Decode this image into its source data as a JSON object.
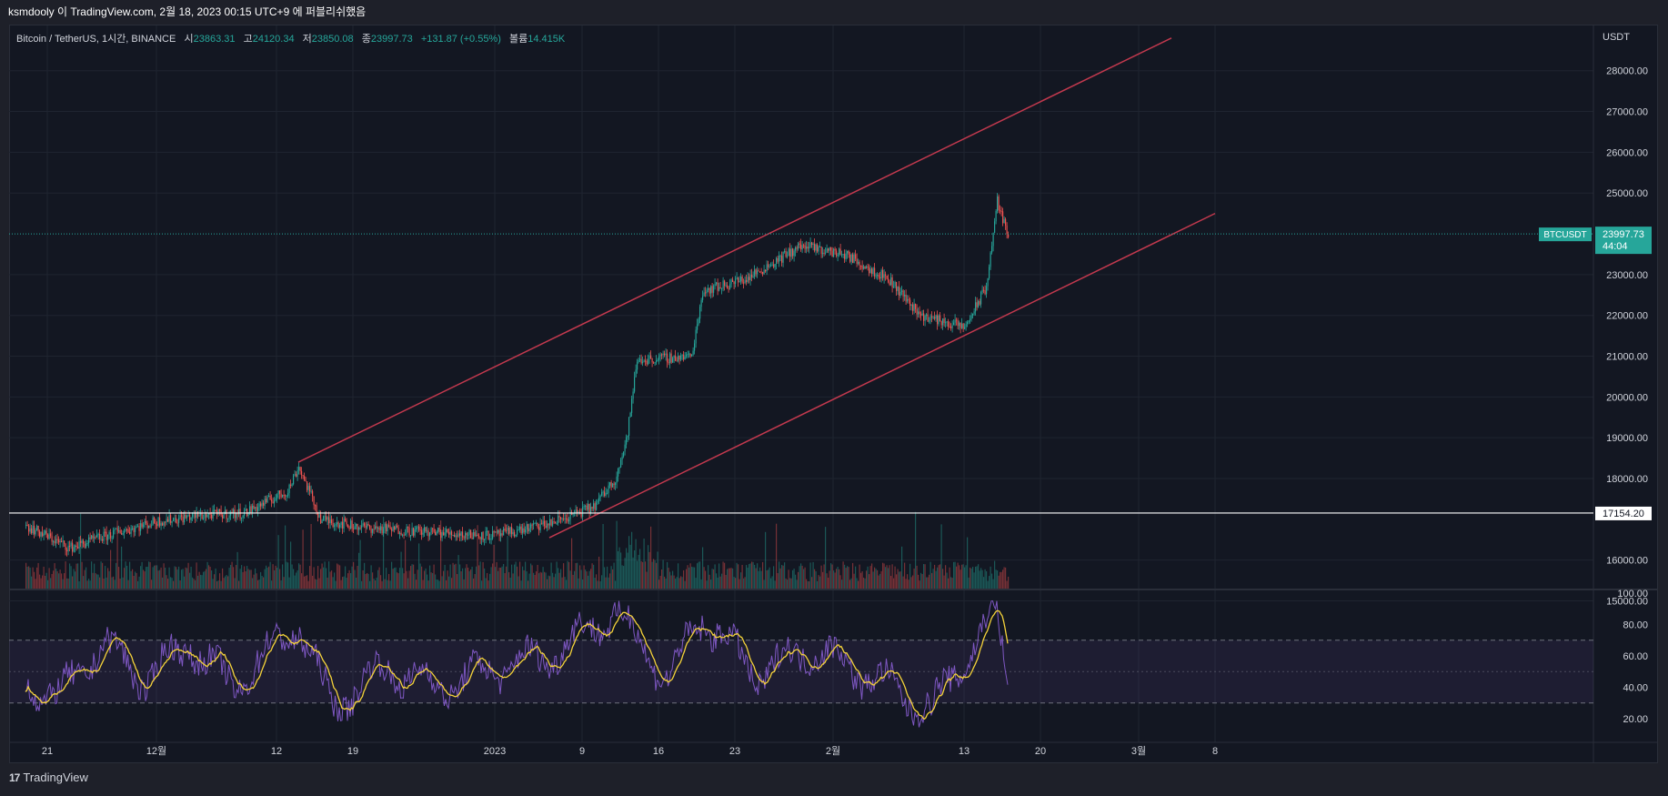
{
  "header": {
    "publish_line": "ksmdooly 이 TradingView.com, 2월 18, 2023 00:15 UTC+9 에 퍼블리쉬했음"
  },
  "legend": {
    "symbol": "Bitcoin / TetherUS, 1시간, BINANCE",
    "open_label": "시",
    "open": "23863.31",
    "high_label": "고",
    "high": "24120.34",
    "low_label": "저",
    "low": "23850.08",
    "close_label": "종",
    "close": "23997.73",
    "change": "+131.87 (+0.55%)",
    "volume_label": "볼륨",
    "volume": "14.415K"
  },
  "price_axis": {
    "currency": "USDT",
    "ticks": [
      "28000.00",
      "27000.00",
      "26000.00",
      "25000.00",
      "23000.00",
      "22000.00",
      "21000.00",
      "20000.00",
      "19000.00",
      "18000.00",
      "16000.00",
      "15000.00"
    ],
    "last_price_symbol": "BTCUSDT",
    "last_price": "23997.73",
    "countdown": "44:04",
    "hline_value": "17154.20"
  },
  "rsi_axis": {
    "ticks": [
      "100.00",
      "80.00",
      "60.00",
      "40.00",
      "20.00"
    ]
  },
  "time_axis": {
    "ticks": [
      "21",
      "12월",
      "12",
      "19",
      "2023",
      "9",
      "16",
      "23",
      "2월",
      "13",
      "20",
      "3월",
      "8"
    ]
  },
  "footer": {
    "logo_glyph": "17",
    "brand": "TradingView"
  },
  "colors": {
    "up": "#26a69a",
    "down": "#ef5350",
    "channel": "#c2394e",
    "rsi": "#7e57c2",
    "rsi_ma": "#f5d33a",
    "background": "#131722"
  },
  "chart_data": {
    "type": "candlestick",
    "symbol": "BTCUSDT",
    "interval": "1시간",
    "ylim": [
      15000,
      28500
    ],
    "price_path": [
      {
        "date": "2022-11-19",
        "price": 16850
      },
      {
        "date": "2022-11-23",
        "price": 16300
      },
      {
        "date": "2022-11-27",
        "price": 16650
      },
      {
        "date": "2022-12-01",
        "price": 16950
      },
      {
        "date": "2022-12-05",
        "price": 17100
      },
      {
        "date": "2022-12-09",
        "price": 17150
      },
      {
        "date": "2022-12-13",
        "price": 17700
      },
      {
        "date": "2022-12-14",
        "price": 18300
      },
      {
        "date": "2022-12-16",
        "price": 17000
      },
      {
        "date": "2022-12-20",
        "price": 16800
      },
      {
        "date": "2022-12-28",
        "price": 16650
      },
      {
        "date": "2023-01-01",
        "price": 16600
      },
      {
        "date": "2023-01-06",
        "price": 16900
      },
      {
        "date": "2023-01-10",
        "price": 17300
      },
      {
        "date": "2023-01-12",
        "price": 18000
      },
      {
        "date": "2023-01-13",
        "price": 18900
      },
      {
        "date": "2023-01-14",
        "price": 20900
      },
      {
        "date": "2023-01-19",
        "price": 21000
      },
      {
        "date": "2023-01-20",
        "price": 22600
      },
      {
        "date": "2023-01-24",
        "price": 22900
      },
      {
        "date": "2023-01-29",
        "price": 23700
      },
      {
        "date": "2023-02-02",
        "price": 23500
      },
      {
        "date": "2023-02-06",
        "price": 22900
      },
      {
        "date": "2023-02-09",
        "price": 22000
      },
      {
        "date": "2023-02-13",
        "price": 21700
      },
      {
        "date": "2023-02-15",
        "price": 22700
      },
      {
        "date": "2023-02-16",
        "price": 24800
      },
      {
        "date": "2023-02-17",
        "price": 23900
      }
    ],
    "horizontal_line": 17154.2,
    "last_price": 23997.73,
    "channel_upper": [
      {
        "date": "2022-12-14",
        "price": 18400
      },
      {
        "date": "2023-03-04",
        "price": 28800
      }
    ],
    "channel_lower": [
      {
        "date": "2023-01-06",
        "price": 16550
      },
      {
        "date": "2023-03-08",
        "price": 24500
      }
    ],
    "rsi_ylim": [
      10,
      100
    ],
    "rsi_levels": [
      70,
      50,
      30
    ],
    "rsi_path": [
      {
        "date": "2022-11-19",
        "rsi": 45
      },
      {
        "date": "2022-11-22",
        "rsi": 32
      },
      {
        "date": "2022-11-26",
        "rsi": 68
      },
      {
        "date": "2022-11-30",
        "rsi": 45
      },
      {
        "date": "2022-12-04",
        "rsi": 68
      },
      {
        "date": "2022-12-08",
        "rsi": 40
      },
      {
        "date": "2022-12-14",
        "rsi": 80
      },
      {
        "date": "2022-12-17",
        "rsi": 28
      },
      {
        "date": "2022-12-22",
        "rsi": 52
      },
      {
        "date": "2022-12-27",
        "rsi": 40
      },
      {
        "date": "2023-01-01",
        "rsi": 52
      },
      {
        "date": "2023-01-06",
        "rsi": 60
      },
      {
        "date": "2023-01-12",
        "rsi": 88
      },
      {
        "date": "2023-01-17",
        "rsi": 45
      },
      {
        "date": "2023-01-20",
        "rsi": 85
      },
      {
        "date": "2023-01-25",
        "rsi": 48
      },
      {
        "date": "2023-01-30",
        "rsi": 65
      },
      {
        "date": "2023-02-05",
        "rsi": 45
      },
      {
        "date": "2023-02-10",
        "rsi": 25
      },
      {
        "date": "2023-02-13",
        "rsi": 58
      },
      {
        "date": "2023-02-16",
        "rsi": 88
      },
      {
        "date": "2023-02-17",
        "rsi": 42
      }
    ]
  }
}
